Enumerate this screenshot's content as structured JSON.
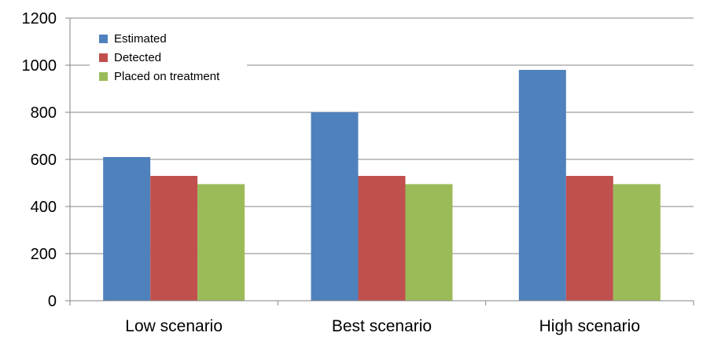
{
  "chart_data": {
    "type": "bar",
    "title": "",
    "xlabel": "",
    "ylabel": "",
    "categories": [
      "Low scenario",
      "Best scenario",
      "High scenario"
    ],
    "series": [
      {
        "name": "Estimated",
        "color": "#4f81bd",
        "values": [
          610,
          800,
          980
        ]
      },
      {
        "name": "Detected",
        "color": "#c0504d",
        "values": [
          530,
          530,
          530
        ]
      },
      {
        "name": "Placed on treatment",
        "color": "#9bbb59",
        "values": [
          495,
          495,
          495
        ]
      }
    ],
    "ylim": [
      0,
      1200
    ],
    "yticks": [
      0,
      200,
      400,
      600,
      800,
      1000,
      1200
    ],
    "grid": true,
    "legend": "top-left"
  }
}
